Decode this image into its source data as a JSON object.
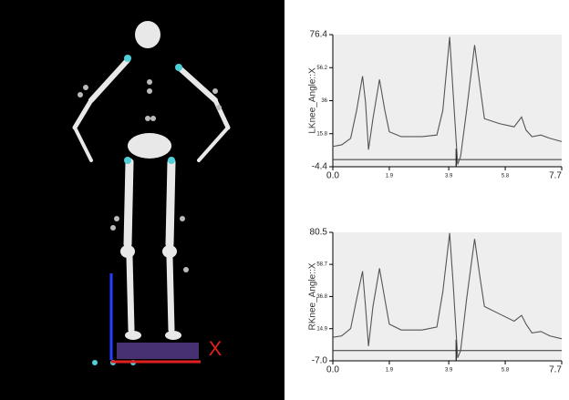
{
  "viewer": {
    "axis_label": "X"
  },
  "chart_data": [
    {
      "type": "line",
      "ylabel": "LKnee_Angle::X",
      "x": [
        0,
        0.3,
        0.6,
        0.8,
        1.0,
        1.1,
        1.2,
        1.35,
        1.57,
        1.75,
        1.9,
        2.3,
        3.0,
        3.5,
        3.7,
        3.93,
        4.05,
        4.2,
        4.3,
        4.5,
        4.77,
        4.95,
        5.1,
        5.6,
        6.1,
        6.35,
        6.5,
        6.7,
        7.0,
        7.3,
        7.7
      ],
      "series": [
        {
          "color": "#555555",
          "values": [
            8,
            9,
            13,
            30,
            51,
            35,
            6,
            25,
            49,
            30,
            17,
            14,
            14,
            15,
            30,
            75,
            40,
            -3,
            2,
            30,
            70,
            45,
            25,
            22,
            20,
            26,
            18,
            14,
            15,
            13,
            11
          ]
        }
      ],
      "cursor_x": 4.15,
      "xlim": [
        0,
        7.7
      ],
      "xticks": [
        {
          "value": 0,
          "label": "0.0"
        },
        1.9,
        3.9,
        5.8,
        7.7
      ],
      "ylim": [
        -4.4,
        76.4
      ],
      "yticks": [
        -4.4,
        15.8,
        36.0,
        56.2,
        76.4
      ]
    },
    {
      "type": "line",
      "ylabel": "RKnee_Angle::X",
      "x": [
        0,
        0.3,
        0.6,
        0.8,
        1.0,
        1.1,
        1.2,
        1.35,
        1.57,
        1.75,
        1.9,
        2.3,
        3.0,
        3.5,
        3.7,
        3.93,
        4.05,
        4.2,
        4.3,
        4.5,
        4.77,
        4.95,
        5.1,
        5.6,
        6.1,
        6.35,
        6.5,
        6.7,
        7.0,
        7.3,
        7.7
      ],
      "series": [
        {
          "color": "#555555",
          "values": [
            9,
            10,
            15,
            35,
            54,
            30,
            3,
            30,
            56,
            35,
            18,
            14,
            14,
            16,
            40,
            80,
            45,
            -5,
            0,
            35,
            76,
            50,
            30,
            25,
            20,
            24,
            18,
            12,
            13,
            10,
            8
          ]
        }
      ],
      "cursor_x": 4.15,
      "xlim": [
        0,
        7.7
      ],
      "xticks": [
        {
          "value": 0,
          "label": "0.0"
        },
        1.9,
        3.9,
        5.8,
        7.7
      ],
      "ylim": [
        -7,
        80.5
      ],
      "yticks": [
        {
          "value": -7,
          "label": "-7.0"
        },
        14.9,
        36.8,
        58.7,
        80.5
      ]
    }
  ]
}
